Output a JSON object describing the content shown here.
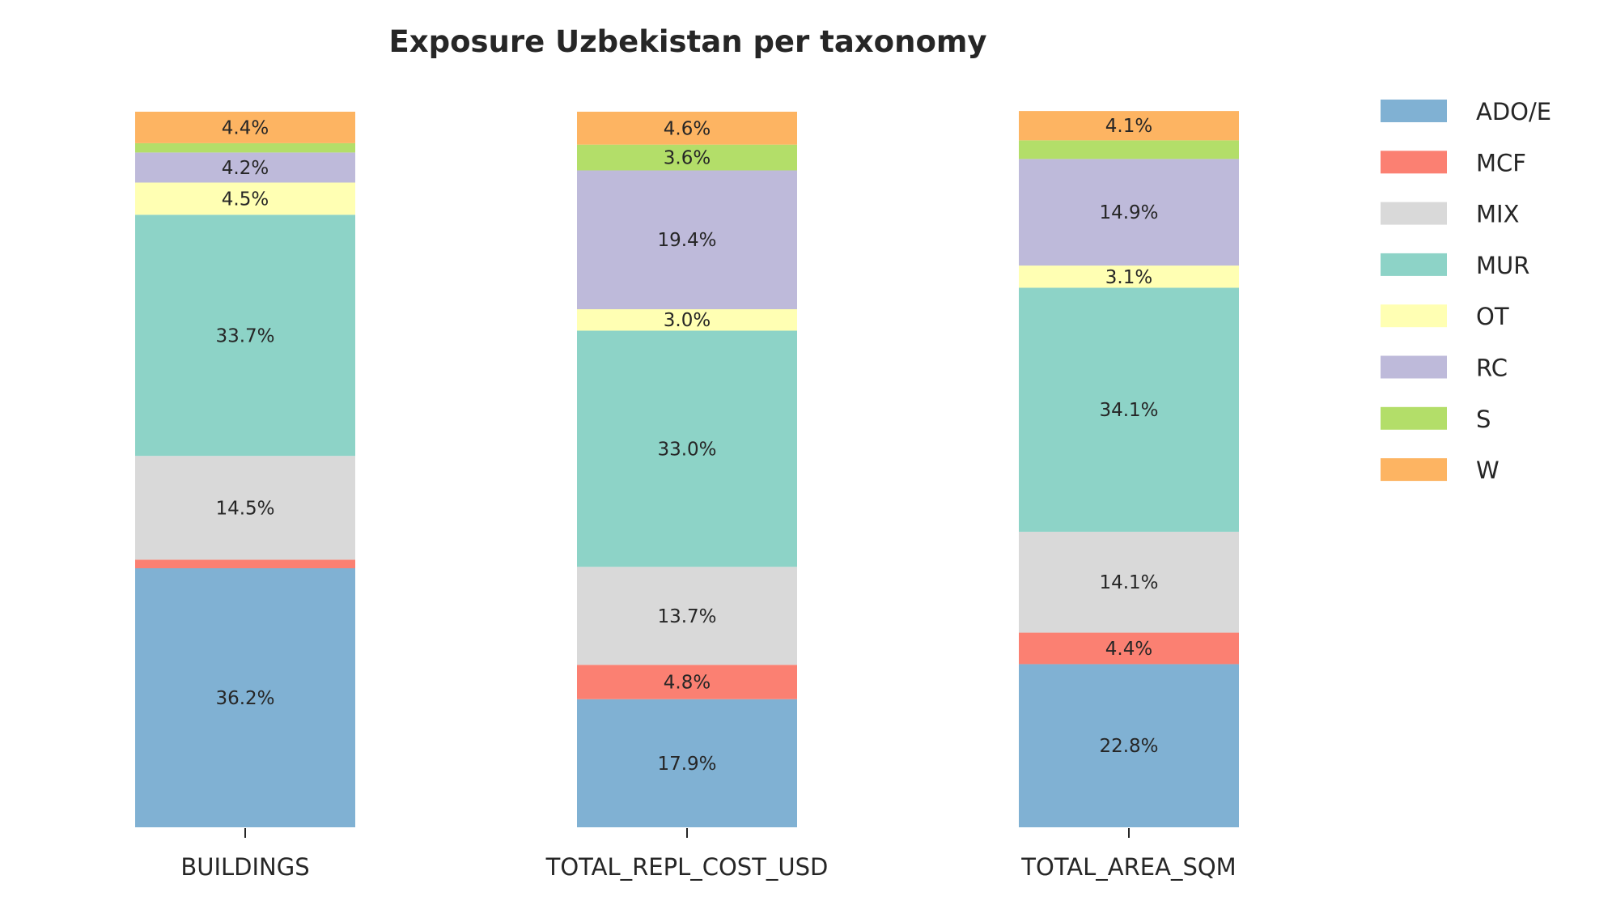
{
  "chart_data": {
    "type": "bar",
    "stacked": true,
    "normalized_percent": true,
    "title": "Exposure Uzbekistan per taxonomy",
    "xlabel": "",
    "ylabel": "",
    "ylim": [
      0,
      100
    ],
    "grid": false,
    "legend_position": "right",
    "categories": [
      "BUILDINGS",
      "TOTAL_REPL_COST_USD",
      "TOTAL_AREA_SQM"
    ],
    "series": [
      {
        "name": "ADO/E",
        "color": "#80b1d3",
        "values": [
          36.2,
          17.9,
          22.8
        ],
        "labels": [
          "36.2%",
          "17.9%",
          "22.8%"
        ]
      },
      {
        "name": "MCF",
        "color": "#fb8072",
        "values": [
          1.2,
          4.8,
          4.4
        ],
        "labels": [
          "",
          "4.8%",
          "4.4%"
        ]
      },
      {
        "name": "MIX",
        "color": "#d9d9d9",
        "values": [
          14.5,
          13.7,
          14.1
        ],
        "labels": [
          "14.5%",
          "13.7%",
          "14.1%"
        ]
      },
      {
        "name": "MUR",
        "color": "#8dd3c7",
        "values": [
          33.7,
          33.0,
          34.1
        ],
        "labels": [
          "33.7%",
          "33.0%",
          "34.1%"
        ]
      },
      {
        "name": "OT",
        "color": "#ffffb3",
        "values": [
          4.5,
          3.0,
          3.1
        ],
        "labels": [
          "4.5%",
          "3.0%",
          "3.1%"
        ]
      },
      {
        "name": "RC",
        "color": "#bebada",
        "values": [
          4.2,
          19.4,
          14.9
        ],
        "labels": [
          "4.2%",
          "19.4%",
          "14.9%"
        ]
      },
      {
        "name": "S",
        "color": "#b3de69",
        "values": [
          1.3,
          3.6,
          2.6
        ],
        "labels": [
          "",
          "3.6%",
          ""
        ]
      },
      {
        "name": "W",
        "color": "#fdb462",
        "values": [
          4.4,
          4.6,
          4.1
        ],
        "labels": [
          "4.4%",
          "4.6%",
          "4.1%"
        ]
      }
    ]
  }
}
